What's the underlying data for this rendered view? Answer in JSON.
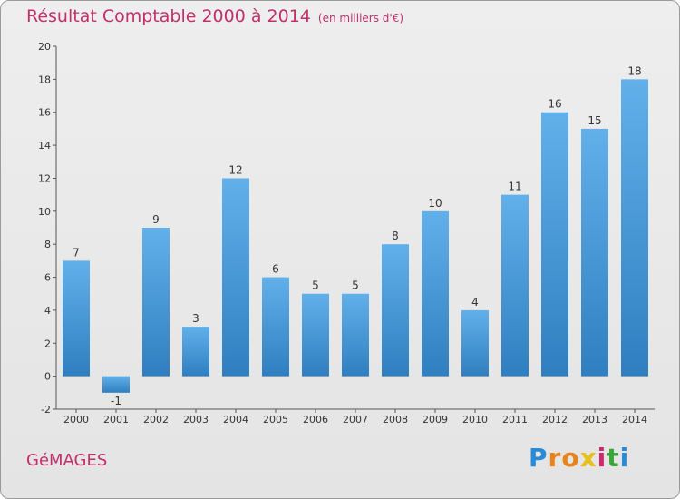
{
  "chart_data": {
    "type": "bar",
    "title": "Résultat Comptable 2000 à 2014",
    "subtitle": "(en milliers d'€)",
    "categories": [
      "2000",
      "2001",
      "2002",
      "2003",
      "2004",
      "2005",
      "2006",
      "2007",
      "2008",
      "2009",
      "2010",
      "2011",
      "2012",
      "2013",
      "2014"
    ],
    "values": [
      7,
      -1,
      9,
      3,
      12,
      6,
      5,
      5,
      8,
      10,
      4,
      11,
      16,
      15,
      18
    ],
    "value_labels": [
      "7",
      "-1",
      "9",
      "3",
      "12",
      "6",
      "5",
      "5",
      "8",
      "10",
      "4",
      "11",
      "16",
      "15",
      "18"
    ],
    "ylim": [
      -2,
      20
    ],
    "yticks": [
      "-2",
      "0",
      "2",
      "4",
      "6",
      "8",
      "10",
      "12",
      "14",
      "16",
      "18",
      "20"
    ],
    "ytick_values": [
      -2,
      0,
      2,
      4,
      6,
      8,
      10,
      12,
      14,
      16,
      18,
      20
    ],
    "grid": false,
    "legend": "none",
    "bar_color_top": "#62b0ea",
    "bar_color_bottom": "#2f7fc0"
  },
  "footer": {
    "commune": "GéMAGES",
    "logo_letters": [
      "P",
      "r",
      "o",
      "x",
      "i",
      "t",
      "i"
    ],
    "logo_colors": [
      "#2a8ad6",
      "#e8821a",
      "#e8821a",
      "#e8c01a",
      "#cc2a6a",
      "#3aa63a",
      "#2a8ad6"
    ]
  }
}
